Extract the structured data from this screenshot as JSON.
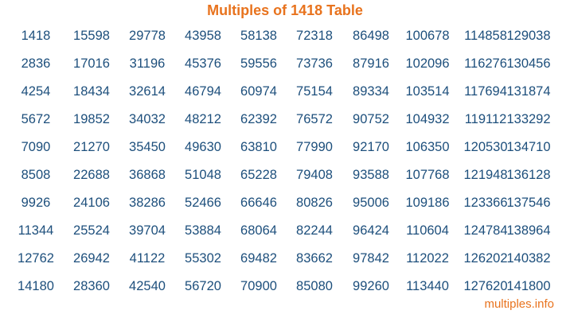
{
  "title": "Multiples of 1418 Table",
  "footer": "multiples.info",
  "colors": {
    "title": "#e8731e",
    "numbers": "#1d4f7c"
  },
  "columns": [
    [
      "1418",
      "2836",
      "4254",
      "5672",
      "7090",
      "8508",
      "9926",
      "11344",
      "12762",
      "14180"
    ],
    [
      "15598",
      "17016",
      "18434",
      "19852",
      "21270",
      "22688",
      "24106",
      "25524",
      "26942",
      "28360"
    ],
    [
      "29778",
      "31196",
      "32614",
      "34032",
      "35450",
      "36868",
      "38286",
      "39704",
      "41122",
      "42540"
    ],
    [
      "43958",
      "45376",
      "46794",
      "48212",
      "49630",
      "51048",
      "52466",
      "53884",
      "55302",
      "56720"
    ],
    [
      "58138",
      "59556",
      "60974",
      "62392",
      "63810",
      "65228",
      "66646",
      "68064",
      "69482",
      "70900"
    ],
    [
      "72318",
      "73736",
      "75154",
      "76572",
      "77990",
      "79408",
      "80826",
      "82244",
      "83662",
      "85080"
    ],
    [
      "86498",
      "87916",
      "89334",
      "90752",
      "92170",
      "93588",
      "95006",
      "96424",
      "97842",
      "99260"
    ],
    [
      "100678",
      "102096",
      "103514",
      "104932",
      "106350",
      "107768",
      "109186",
      "110604",
      "112022",
      "113440"
    ],
    [
      "114858",
      "116276",
      "117694",
      "119112",
      "120530",
      "121948",
      "123366",
      "124784",
      "126202",
      "127620"
    ],
    [
      "129038",
      "130456",
      "131874",
      "133292",
      "134710",
      "136128",
      "137546",
      "138964",
      "140382",
      "141800"
    ]
  ]
}
